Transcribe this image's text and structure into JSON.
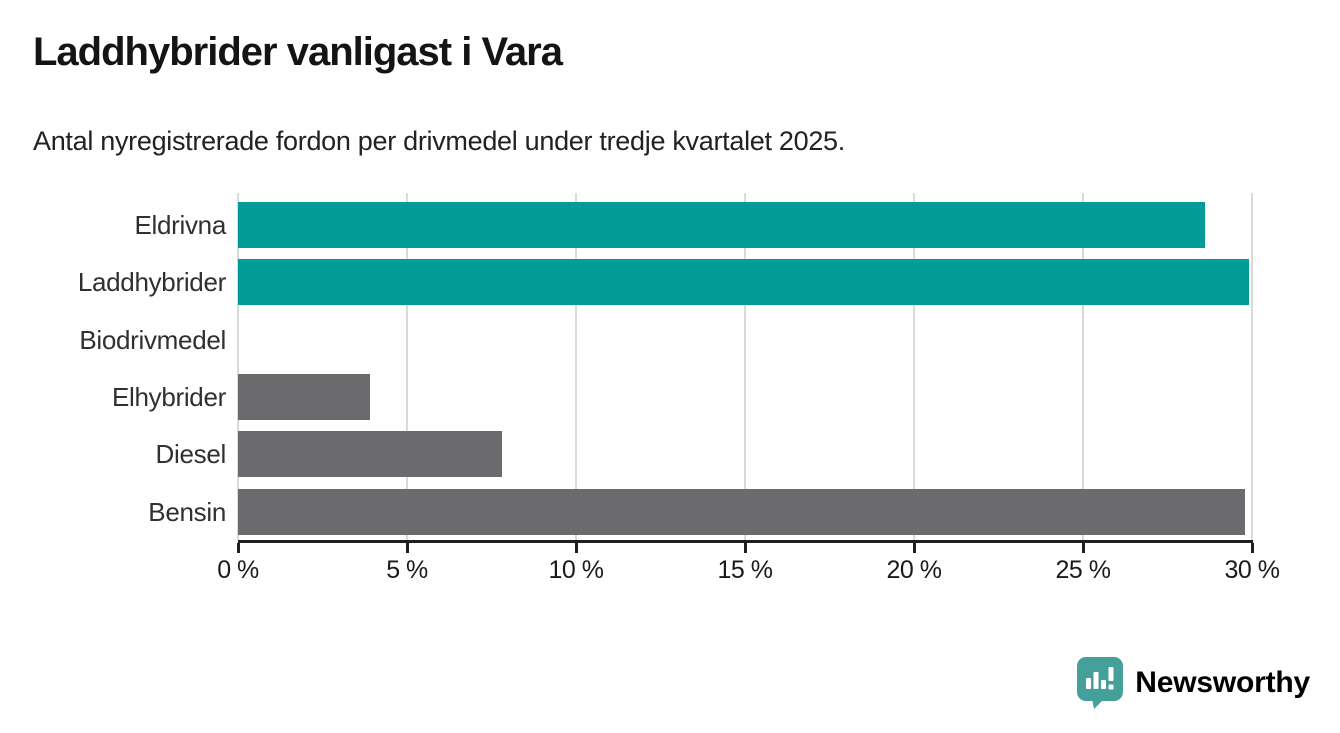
{
  "header": {
    "title": "Laddhybrider vanligast i Vara",
    "subtitle": "Antal nyregistrerade fordon per drivmedel under tredje kvartalet 2025."
  },
  "chart_data": {
    "type": "bar",
    "orientation": "horizontal",
    "title": "Laddhybrider vanligast i Vara",
    "subtitle": "Antal nyregistrerade fordon per drivmedel under tredje kvartalet 2025.",
    "categories": [
      "Eldrivna",
      "Laddhybrider",
      "Biodrivmedel",
      "Elhybrider",
      "Diesel",
      "Bensin"
    ],
    "values": [
      28.6,
      29.9,
      0,
      3.9,
      7.8,
      29.8
    ],
    "unit": "%",
    "bar_colors": [
      "#009c95",
      "#009c95",
      "#6b6b6e",
      "#6b6b6e",
      "#6b6b6e",
      "#6b6b6e"
    ],
    "highlight_color": "#009c95",
    "default_color": "#6b6b6e",
    "xlim": [
      0,
      30
    ],
    "x_ticks": [
      "0 %",
      "5 %",
      "10 %",
      "15 %",
      "20 %",
      "25 %",
      "30 %"
    ],
    "grid": true,
    "gridline_color": "#dadada",
    "axis_color": "#1f1f1f",
    "legend": "none"
  },
  "branding": {
    "logo_text": "Newsworthy",
    "logo_color": "#45a09b",
    "logo_icon": "newsworthy-speech-bubble-chart-icon"
  }
}
